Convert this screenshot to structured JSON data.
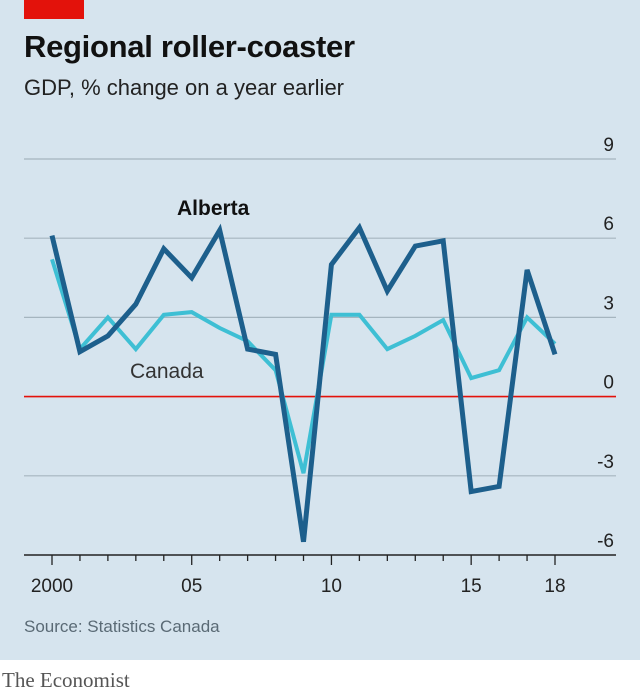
{
  "header": {
    "title": "Regional roller-coaster",
    "subtitle": "GDP, % change on a year earlier"
  },
  "footer": {
    "source": "Source: Statistics Canada",
    "brand": "The Economist"
  },
  "colors": {
    "background": "#d6e4ee",
    "alberta": "#1d5f8c",
    "canada": "#3ebfd4",
    "zero_line": "#e3120b",
    "grid": "#a5b5bf",
    "accent_tag": "#e3120b"
  },
  "chart_data": {
    "type": "line",
    "title": "Regional roller-coaster",
    "subtitle": "GDP, % change on a year earlier",
    "xlabel": "",
    "ylabel": "",
    "x": [
      2000,
      2001,
      2002,
      2003,
      2004,
      2005,
      2006,
      2007,
      2008,
      2009,
      2010,
      2011,
      2012,
      2013,
      2014,
      2015,
      2016,
      2017,
      2018
    ],
    "x_tick_values": [
      2000,
      2005,
      2010,
      2015,
      2018
    ],
    "x_tick_labels": [
      "2000",
      "05",
      "10",
      "15",
      "18"
    ],
    "y_ticks": [
      9,
      6,
      3,
      0,
      -3,
      -6
    ],
    "ylim": [
      -6,
      9
    ],
    "xlim": [
      2000,
      2018
    ],
    "grid": true,
    "series": [
      {
        "name": "Alberta",
        "values": [
          6.1,
          1.7,
          2.3,
          3.5,
          5.6,
          4.5,
          6.3,
          1.8,
          1.6,
          -5.5,
          5.0,
          6.4,
          4.0,
          5.7,
          5.9,
          -3.6,
          -3.4,
          4.8,
          1.6
        ]
      },
      {
        "name": "Canada",
        "values": [
          5.2,
          1.8,
          3.0,
          1.8,
          3.1,
          3.2,
          2.6,
          2.1,
          1.0,
          -2.9,
          3.1,
          3.1,
          1.8,
          2.3,
          2.9,
          0.7,
          1.0,
          3.0,
          2.0
        ]
      }
    ]
  }
}
